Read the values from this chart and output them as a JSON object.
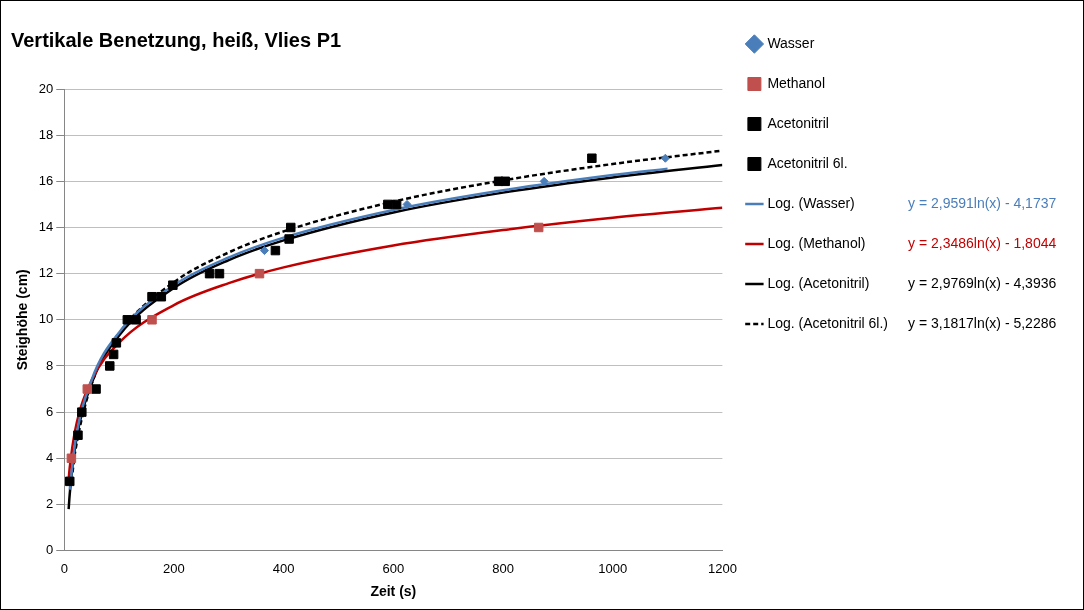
{
  "chart_data": {
    "type": "scatter",
    "title": "Vertikale Benetzung, heiß, Vlies P1",
    "xlabel": "Zeit (s)",
    "ylabel": "Steighöhe (cm)",
    "xlim": [
      0,
      1200
    ],
    "xticks": [
      0,
      200,
      400,
      600,
      800,
      1000,
      1200
    ],
    "ylim": [
      0,
      20
    ],
    "yticks": [
      0,
      2,
      4,
      6,
      8,
      10,
      12,
      14,
      16,
      18,
      20
    ],
    "grid": "y",
    "legend": "right",
    "annotations": [
      "y = 2,9591ln(x) - 4,1737",
      "y = 2,3486ln(x) - 1,8044",
      "y = 2,9769ln(x) - 4,3936",
      "y = 3,1817ln(x) - 5,2286"
    ],
    "series": [
      {
        "name": "Wasser",
        "marker": "diamond",
        "color": "#4a7ebb",
        "x": [
          365,
          625,
          875,
          1096
        ],
        "values": [
          13,
          15,
          16,
          17
        ]
      },
      {
        "name": "Methanol",
        "marker": "square",
        "color": "#c0504d",
        "x": [
          13,
          42,
          160,
          356,
          865
        ],
        "values": [
          4,
          7,
          10,
          12,
          14
        ]
      },
      {
        "name": "Acetonitril",
        "marker": "square",
        "color": "#000000",
        "x": [
          10,
          25,
          58,
          83,
          131,
          177,
          198,
          283,
          385,
          410,
          606,
          804
        ],
        "values": [
          3,
          5,
          7,
          8,
          10,
          11,
          11.5,
          12,
          13,
          13.5,
          15,
          16
        ]
      },
      {
        "name": "Acetonitril 6l.",
        "marker": "square",
        "color": "#000000",
        "x": [
          32,
          90,
          95,
          115,
          160,
          265,
          413,
          590,
          792,
          962
        ],
        "values": [
          6,
          8.5,
          9,
          10,
          11,
          12,
          14,
          15,
          16,
          17
        ]
      },
      {
        "name": "Log. (Wasser)",
        "type": "line",
        "marker": "none",
        "line_style": "solid",
        "color": "#4a7ebb",
        "x": [
          10,
          20,
          50,
          100,
          200,
          300,
          400,
          600,
          800,
          1000,
          1100
        ],
        "values": [
          2.64,
          4.69,
          7.4,
          9.45,
          11.5,
          12.7,
          13.56,
          14.76,
          15.61,
          16.27,
          16.55
        ]
      },
      {
        "name": "Log. (Methanol)",
        "type": "line",
        "marker": "none",
        "line_style": "solid",
        "color": "#c00000",
        "x": [
          8,
          10,
          20,
          50,
          100,
          200,
          300,
          400,
          600,
          800,
          1000,
          1200
        ],
        "values": [
          3.08,
          3.6,
          5.23,
          7.38,
          9.01,
          10.64,
          11.59,
          12.27,
          13.22,
          13.89,
          14.42,
          14.85
        ]
      },
      {
        "name": "Log. (Acetonitril)",
        "type": "line",
        "marker": "none",
        "line_style": "solid",
        "color": "#000000",
        "x": [
          8,
          10,
          20,
          50,
          100,
          200,
          300,
          400,
          600,
          800,
          1000,
          1200
        ],
        "values": [
          1.8,
          2.46,
          4.52,
          7.25,
          9.32,
          11.38,
          12.59,
          13.44,
          14.65,
          15.51,
          16.17,
          16.71
        ]
      },
      {
        "name": "Log. (Acetonitril 6l.)",
        "type": "line",
        "marker": "none",
        "line_style": "dashed",
        "color": "#000000",
        "x": [
          15,
          20,
          50,
          100,
          200,
          300,
          400,
          600,
          800,
          1000,
          1200
        ],
        "values": [
          3.39,
          4.3,
          7.22,
          9.42,
          11.63,
          12.92,
          13.83,
          15.12,
          16.04,
          16.75,
          17.33
        ]
      }
    ]
  }
}
